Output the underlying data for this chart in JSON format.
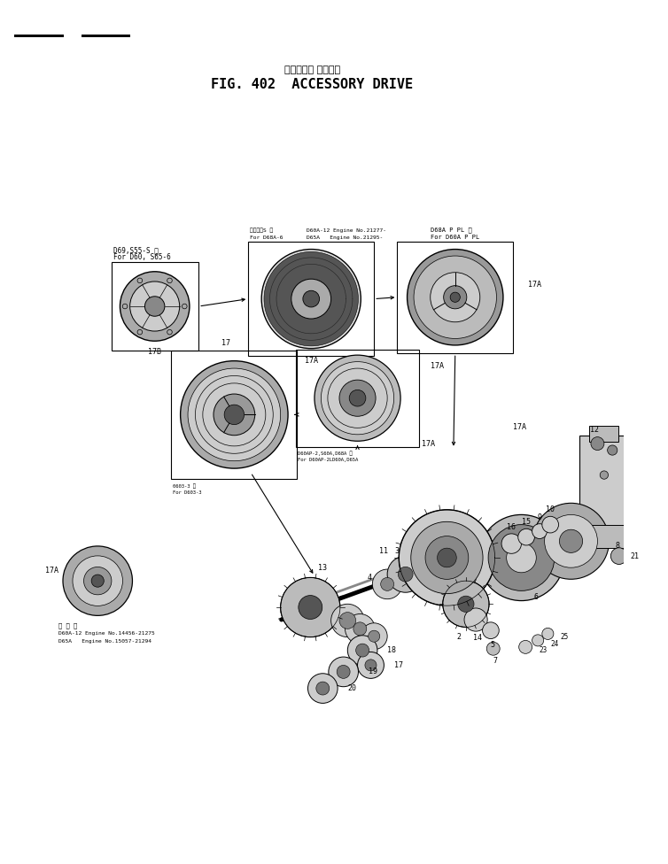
{
  "title_japanese": "アクセサリ ドライブ",
  "title_english": "FIG. 402  ACCESSORY DRIVE",
  "bg_color": "#ffffff",
  "lc": "#000000",
  "fig_width": 7.54,
  "fig_height": 9.76,
  "dpi": 100,
  "annotations": {
    "box1_l1": "D69,S55-S 用",
    "box1_l2": "For D60, S65-6",
    "box2_l1": "あかトーS 用",
    "box2_l2": "For D68A-6",
    "box2_l3": "D60A-12 Engine No.21277-",
    "box2_l4": "D65A   Engine No.21295-",
    "box3_l1": "D68A P PL 用",
    "box3_l2": "For D60A P PL",
    "box4_l1": "D60AP-2,S60A,D68A 用",
    "box4_l2": "For D60AP-2LD60A,D65A",
    "box5_l1": "0603-3 用",
    "box5_l2": "For D603-3",
    "bot_l1": "普 及 品",
    "bot_l2": "D60A-12 Engine No.14456-21275",
    "bot_l3": "D65A   Engine No.15057-21294"
  }
}
